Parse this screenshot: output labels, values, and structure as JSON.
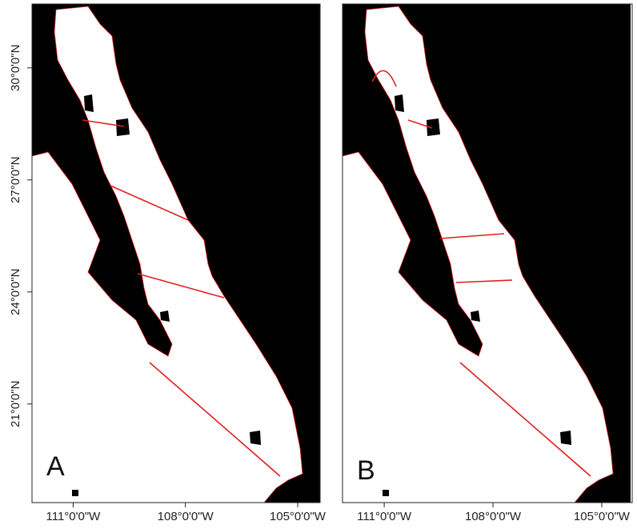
{
  "panels": [
    {
      "letter": "A",
      "xlim": [
        -112.1,
        -104.4
      ],
      "ylim": [
        18.36,
        31.71
      ],
      "xticks": [
        {
          "value": -111,
          "label": "111°0'0\"W"
        },
        {
          "value": -108,
          "label": "108°0'0\"W"
        },
        {
          "value": -105,
          "label": "105°0'0\"W"
        }
      ],
      "yticks": [
        {
          "value": 30,
          "label": "30°0'0\"N"
        },
        {
          "value": 27,
          "label": "27°0'0\"N"
        },
        {
          "value": 24,
          "label": "24°0'0\"N"
        },
        {
          "value": 21,
          "label": "21°0'0\"N"
        }
      ]
    },
    {
      "letter": "B",
      "xlim": [
        -112.15,
        -104.16
      ],
      "xticks": [
        {
          "value": -111,
          "label": "111°0'0\"W"
        },
        {
          "value": -108,
          "label": "108°0'0\"W"
        },
        {
          "value": -105,
          "label": "105°0'0\"W"
        }
      ]
    }
  ]
}
